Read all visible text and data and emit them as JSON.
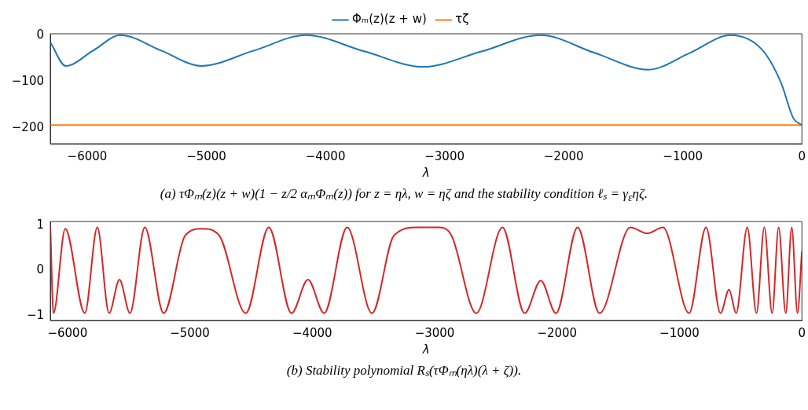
{
  "chart_data": [
    {
      "type": "line",
      "xlabel": "λ",
      "xlim": [
        -6310,
        0
      ],
      "xticks": [
        -6000,
        -5000,
        -4000,
        -3000,
        -2000,
        -1000,
        0
      ],
      "ylim": [
        -233,
        3
      ],
      "yticks": [
        0,
        -100,
        -200
      ],
      "grid": false,
      "legend": "top",
      "marker": "none",
      "line_style": "solid",
      "annotations": [
        "(a) τΦₘ(z)(z + w)(1 − z/2 αₘΦₘ(z)) for z = ηλ, w = ηζ and the stability condition ℓₛ = γ$_{ε}$ηζ."
      ],
      "series": [
        {
          "name": "Φₘ(z)(z + w)",
          "color": "#1f77b4",
          "x": [
            -6310,
            -6180,
            -5950,
            -5720,
            -5380,
            -5041,
            -4600,
            -4165,
            -3670,
            -3180,
            -2690,
            -2194,
            -1740,
            -1288,
            -940,
            -598,
            -335,
            -177,
            -72,
            0
          ],
          "values": [
            -15,
            -66,
            -33,
            0,
            -33,
            -66,
            -33,
            0,
            -35,
            -68,
            -35,
            0,
            -38,
            -74,
            -38,
            0,
            -31,
            -101,
            -178,
            -193
          ]
        },
        {
          "name": "τζ",
          "color": "#ff7f0e",
          "x": [
            -6310,
            0
          ],
          "values": [
            -193,
            -193
          ]
        }
      ]
    },
    {
      "type": "line",
      "xlabel": "λ",
      "xlim": [
        -6140,
        0
      ],
      "xticks": [
        -6000,
        -5000,
        -4000,
        -3000,
        -2000,
        -1000,
        0
      ],
      "ylim": [
        -1.1,
        1.08
      ],
      "yticks": [
        1,
        0,
        -1
      ],
      "grid": false,
      "legend": false,
      "marker": "none",
      "line_style": "solid",
      "annotations": [
        "(b) Stability polynomial Rₛ(τΦₘ(ηλ)(λ + ζ))."
      ],
      "series": [
        {
          "color": "#d62728",
          "x": [
            -6140,
            -6114,
            -6018,
            -5858,
            -5756,
            -5660,
            -5575,
            -5489,
            -5368,
            -5214,
            -5038,
            -4899,
            -4760,
            -4543,
            -4355,
            -4169,
            -4035,
            -3903,
            -3715,
            -3512,
            -3333,
            -3139,
            -2969,
            -2862,
            -2660,
            -2446,
            -2265,
            -2133,
            -2009,
            -1832,
            -1653,
            -1401,
            -1263,
            -1135,
            -921,
            -783,
            -665,
            -595,
            -537,
            -446,
            -371,
            -307,
            -243,
            -190,
            -132,
            -83,
            -36,
            0
          ],
          "values": [
            1.0,
            -0.94,
            0.92,
            -0.94,
            0.95,
            -0.94,
            -0.2,
            -0.94,
            0.95,
            -0.94,
            0.77,
            0.92,
            0.77,
            -0.94,
            0.95,
            -0.94,
            -0.2,
            -0.94,
            0.95,
            -0.94,
            0.77,
            0.95,
            0.95,
            0.77,
            -0.94,
            0.95,
            -0.94,
            -0.22,
            -0.94,
            0.95,
            -0.94,
            0.95,
            0.82,
            0.95,
            -0.94,
            0.95,
            -0.94,
            -0.42,
            -0.94,
            0.95,
            -0.94,
            0.95,
            -0.94,
            0.95,
            -0.94,
            0.95,
            -0.94,
            0.42
          ]
        }
      ]
    }
  ]
}
